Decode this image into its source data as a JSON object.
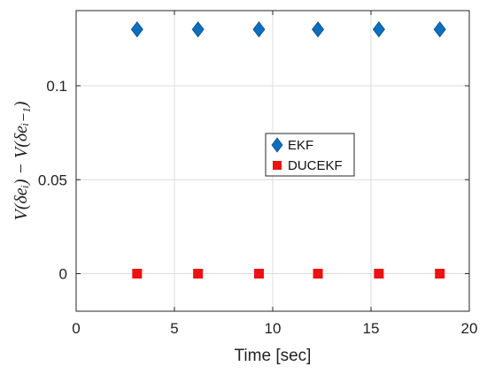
{
  "chart_data": {
    "type": "scatter",
    "xlabel": "Time [sec]",
    "ylabel": "V(δeᵢ) − V(δeᵢ₋₁)",
    "xlim": [
      0,
      20
    ],
    "ylim": [
      -0.02,
      0.14
    ],
    "xticks": [
      "0",
      "5",
      "10",
      "15",
      "20"
    ],
    "yticks": [
      "0",
      "0.05",
      "0.1"
    ],
    "xtick_values": [
      0,
      5,
      10,
      15,
      20
    ],
    "ytick_values": [
      0,
      0.05,
      0.1
    ],
    "grid": true,
    "legend_position": "center-right",
    "series": [
      {
        "name": "EKF",
        "marker": "diamond",
        "color": "#0b6fbd",
        "points": [
          {
            "x": 3.1,
            "y": 0.13
          },
          {
            "x": 6.2,
            "y": 0.13
          },
          {
            "x": 9.3,
            "y": 0.13
          },
          {
            "x": 12.3,
            "y": 0.13
          },
          {
            "x": 15.4,
            "y": 0.13
          },
          {
            "x": 18.5,
            "y": 0.13
          }
        ]
      },
      {
        "name": "DUCEKF",
        "marker": "square",
        "color": "#ee1111",
        "points": [
          {
            "x": 3.1,
            "y": 0
          },
          {
            "x": 6.2,
            "y": 0
          },
          {
            "x": 9.3,
            "y": 0
          },
          {
            "x": 12.3,
            "y": 0
          },
          {
            "x": 15.4,
            "y": 0
          },
          {
            "x": 18.5,
            "y": 0
          }
        ]
      }
    ]
  }
}
